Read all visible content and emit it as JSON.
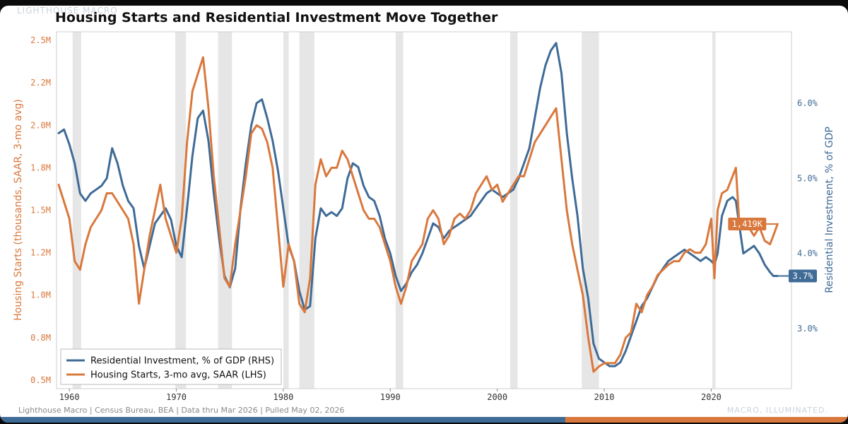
{
  "brand": "LIGHTHOUSE MACRO",
  "title": "Housing Starts and Residential Investment Move Together",
  "footer": {
    "source": "Lighthouse Macro | Census Bureau, BEA | Data thru Mar 2026 | Pulled May 02, 2026",
    "tagline": "MACRO, ILLUMINATED."
  },
  "colors": {
    "starts": "#d9783d",
    "resinv": "#3f6b97",
    "recession": "#e6e6e6"
  },
  "chart_data": {
    "type": "line",
    "title": "Housing Starts and Residential Investment Move Together",
    "xlabel": "",
    "ylabel_left": "Housing Starts (thousands, SAAR, 3-mo avg)",
    "ylabel_right": "Residential Investment, % of GDP",
    "xlim": [
      1958.8,
      2027.5
    ],
    "ylim_left": [
      0.45,
      2.55
    ],
    "ylim_right": [
      2.2,
      6.95
    ],
    "x_ticks": [
      1960,
      1970,
      1980,
      1990,
      2000,
      2010,
      2020
    ],
    "x_tick_labels": [
      "1960",
      "1970",
      "1980",
      "1990",
      "2000",
      "2010",
      "2020"
    ],
    "y_left_ticks": [
      0.5,
      0.75,
      1.0,
      1.25,
      1.5,
      1.75,
      2.0,
      2.25,
      2.5
    ],
    "y_left_tick_labels": [
      "0.5M",
      "0.8M",
      "1.0M",
      "1.2M",
      "1.5M",
      "1.8M",
      "2.0M",
      "2.2M",
      "2.5M"
    ],
    "y_right_ticks": [
      3.0,
      4.0,
      5.0,
      6.0
    ],
    "y_right_tick_labels": [
      "3.0%",
      "4.0%",
      "5.0%",
      "6.0%"
    ],
    "grid": false,
    "legend_position": "bottom-left",
    "recessions": [
      [
        1960.3,
        1961.1
      ],
      [
        1969.9,
        1970.9
      ],
      [
        1973.9,
        1975.2
      ],
      [
        1980.0,
        1980.5
      ],
      [
        1981.5,
        1982.9
      ],
      [
        1990.5,
        1991.2
      ],
      [
        2001.2,
        2001.9
      ],
      [
        2007.9,
        2009.5
      ],
      [
        2020.1,
        2020.4
      ]
    ],
    "series": [
      {
        "name": "Residential Investment, % of GDP (RHS)",
        "axis": "right",
        "color": "#3f6b97",
        "end_label": "3.7%",
        "x": [
          1959.0,
          1959.5,
          1960.0,
          1960.5,
          1961.0,
          1961.5,
          1962.0,
          1962.5,
          1963.0,
          1963.5,
          1964.0,
          1964.5,
          1965.0,
          1965.5,
          1966.0,
          1966.5,
          1967.0,
          1967.5,
          1968.0,
          1968.5,
          1969.0,
          1969.5,
          1970.0,
          1970.5,
          1971.0,
          1971.5,
          1972.0,
          1972.5,
          1973.0,
          1973.5,
          1974.0,
          1974.5,
          1975.0,
          1975.5,
          1976.0,
          1976.5,
          1977.0,
          1977.5,
          1978.0,
          1978.5,
          1979.0,
          1979.5,
          1980.0,
          1980.5,
          1981.0,
          1981.5,
          1982.0,
          1982.5,
          1983.0,
          1983.5,
          1984.0,
          1984.5,
          1985.0,
          1985.5,
          1986.0,
          1986.5,
          1987.0,
          1987.5,
          1988.0,
          1988.5,
          1989.0,
          1989.5,
          1990.0,
          1990.5,
          1991.0,
          1991.5,
          1992.0,
          1992.5,
          1993.0,
          1993.5,
          1994.0,
          1994.5,
          1995.0,
          1995.5,
          1996.0,
          1996.5,
          1997.0,
          1997.5,
          1998.0,
          1998.5,
          1999.0,
          1999.5,
          2000.0,
          2000.5,
          2001.0,
          2001.5,
          2002.0,
          2002.5,
          2003.0,
          2003.5,
          2004.0,
          2004.5,
          2005.0,
          2005.5,
          2006.0,
          2006.5,
          2007.0,
          2007.5,
          2008.0,
          2008.5,
          2009.0,
          2009.5,
          2010.0,
          2010.5,
          2011.0,
          2011.5,
          2012.0,
          2012.5,
          2013.0,
          2013.5,
          2014.0,
          2014.5,
          2015.0,
          2015.5,
          2016.0,
          2016.5,
          2017.0,
          2017.5,
          2018.0,
          2018.5,
          2019.0,
          2019.5,
          2020.0,
          2020.3,
          2020.6,
          2021.0,
          2021.5,
          2022.0,
          2022.3,
          2022.6,
          2023.0,
          2023.5,
          2024.0,
          2024.5,
          2025.0,
          2025.5,
          2025.8,
          2026.2
        ],
        "y": [
          5.6,
          5.65,
          5.45,
          5.2,
          4.8,
          4.7,
          4.8,
          4.85,
          4.9,
          5.0,
          5.4,
          5.2,
          4.9,
          4.7,
          4.6,
          4.1,
          3.8,
          4.1,
          4.4,
          4.5,
          4.6,
          4.45,
          4.1,
          3.95,
          4.6,
          5.3,
          5.8,
          5.9,
          5.5,
          4.8,
          4.2,
          3.7,
          3.55,
          3.8,
          4.6,
          5.2,
          5.7,
          6.0,
          6.05,
          5.8,
          5.5,
          5.1,
          4.6,
          4.1,
          3.9,
          3.5,
          3.25,
          3.3,
          4.2,
          4.6,
          4.5,
          4.55,
          4.5,
          4.6,
          5.0,
          5.2,
          5.15,
          4.9,
          4.75,
          4.7,
          4.5,
          4.2,
          4.0,
          3.7,
          3.5,
          3.6,
          3.75,
          3.85,
          4.0,
          4.2,
          4.4,
          4.35,
          4.2,
          4.3,
          4.35,
          4.4,
          4.45,
          4.5,
          4.6,
          4.7,
          4.8,
          4.85,
          4.8,
          4.75,
          4.8,
          4.85,
          5.0,
          5.2,
          5.4,
          5.8,
          6.2,
          6.5,
          6.7,
          6.8,
          6.4,
          5.6,
          5.0,
          4.5,
          3.8,
          3.4,
          2.8,
          2.6,
          2.55,
          2.5,
          2.5,
          2.55,
          2.7,
          2.9,
          3.1,
          3.3,
          3.4,
          3.55,
          3.7,
          3.8,
          3.9,
          3.95,
          4.0,
          4.05,
          4.0,
          3.95,
          3.9,
          3.95,
          3.9,
          3.85,
          4.0,
          4.5,
          4.7,
          4.75,
          4.7,
          4.4,
          4.0,
          4.05,
          4.1,
          4.0,
          3.85,
          3.75,
          3.7,
          3.7
        ]
      },
      {
        "name": "Housing Starts, 3-mo avg, SAAR (LHS)",
        "axis": "left",
        "color": "#d9783d",
        "end_label": "1,419K",
        "x": [
          1959.0,
          1959.5,
          1960.0,
          1960.5,
          1961.0,
          1961.5,
          1962.0,
          1962.5,
          1963.0,
          1963.5,
          1964.0,
          1964.5,
          1965.0,
          1965.5,
          1966.0,
          1966.5,
          1967.0,
          1967.5,
          1968.0,
          1968.5,
          1969.0,
          1969.5,
          1970.0,
          1970.5,
          1971.0,
          1971.5,
          1972.0,
          1972.5,
          1973.0,
          1973.5,
          1974.0,
          1974.5,
          1975.0,
          1975.5,
          1976.0,
          1976.5,
          1977.0,
          1977.5,
          1978.0,
          1978.5,
          1979.0,
          1979.5,
          1980.0,
          1980.5,
          1981.0,
          1981.5,
          1982.0,
          1982.5,
          1983.0,
          1983.5,
          1984.0,
          1984.5,
          1985.0,
          1985.5,
          1986.0,
          1986.5,
          1987.0,
          1987.5,
          1988.0,
          1988.5,
          1989.0,
          1989.5,
          1990.0,
          1990.5,
          1991.0,
          1991.5,
          1992.0,
          1992.5,
          1993.0,
          1993.5,
          1994.0,
          1994.5,
          1995.0,
          1995.5,
          1996.0,
          1996.5,
          1997.0,
          1997.5,
          1998.0,
          1998.5,
          1999.0,
          1999.5,
          2000.0,
          2000.5,
          2001.0,
          2001.5,
          2002.0,
          2002.5,
          2003.0,
          2003.5,
          2004.0,
          2004.5,
          2005.0,
          2005.5,
          2006.0,
          2006.5,
          2007.0,
          2007.5,
          2008.0,
          2008.5,
          2009.0,
          2009.5,
          2010.0,
          2010.5,
          2011.0,
          2011.5,
          2012.0,
          2012.5,
          2013.0,
          2013.5,
          2014.0,
          2014.5,
          2015.0,
          2015.5,
          2016.0,
          2016.5,
          2017.0,
          2017.5,
          2018.0,
          2018.5,
          2019.0,
          2019.5,
          2020.0,
          2020.3,
          2020.6,
          2021.0,
          2021.5,
          2022.0,
          2022.3,
          2022.6,
          2023.0,
          2023.5,
          2024.0,
          2024.5,
          2025.0,
          2025.5,
          2025.8,
          2026.2
        ],
        "y": [
          1.65,
          1.55,
          1.45,
          1.2,
          1.15,
          1.3,
          1.4,
          1.45,
          1.5,
          1.6,
          1.6,
          1.55,
          1.5,
          1.45,
          1.3,
          0.95,
          1.15,
          1.35,
          1.5,
          1.65,
          1.45,
          1.35,
          1.25,
          1.45,
          1.9,
          2.2,
          2.3,
          2.4,
          2.1,
          1.7,
          1.4,
          1.1,
          1.05,
          1.3,
          1.5,
          1.7,
          1.95,
          2.0,
          1.98,
          1.9,
          1.75,
          1.4,
          1.05,
          1.3,
          1.2,
          0.95,
          0.9,
          1.1,
          1.65,
          1.8,
          1.7,
          1.75,
          1.75,
          1.85,
          1.8,
          1.7,
          1.6,
          1.5,
          1.45,
          1.45,
          1.4,
          1.3,
          1.2,
          1.05,
          0.95,
          1.05,
          1.2,
          1.25,
          1.3,
          1.45,
          1.5,
          1.45,
          1.3,
          1.35,
          1.45,
          1.48,
          1.45,
          1.5,
          1.6,
          1.65,
          1.7,
          1.62,
          1.65,
          1.55,
          1.6,
          1.65,
          1.7,
          1.7,
          1.8,
          1.9,
          1.95,
          2.0,
          2.05,
          2.1,
          1.8,
          1.5,
          1.3,
          1.15,
          1.0,
          0.75,
          0.55,
          0.58,
          0.6,
          0.6,
          0.6,
          0.65,
          0.75,
          0.78,
          0.95,
          0.9,
          1.0,
          1.05,
          1.12,
          1.15,
          1.18,
          1.2,
          1.2,
          1.25,
          1.27,
          1.25,
          1.25,
          1.3,
          1.45,
          1.1,
          1.5,
          1.6,
          1.62,
          1.7,
          1.75,
          1.45,
          1.45,
          1.4,
          1.35,
          1.4,
          1.32,
          1.3,
          1.35,
          1.419
        ]
      }
    ]
  }
}
